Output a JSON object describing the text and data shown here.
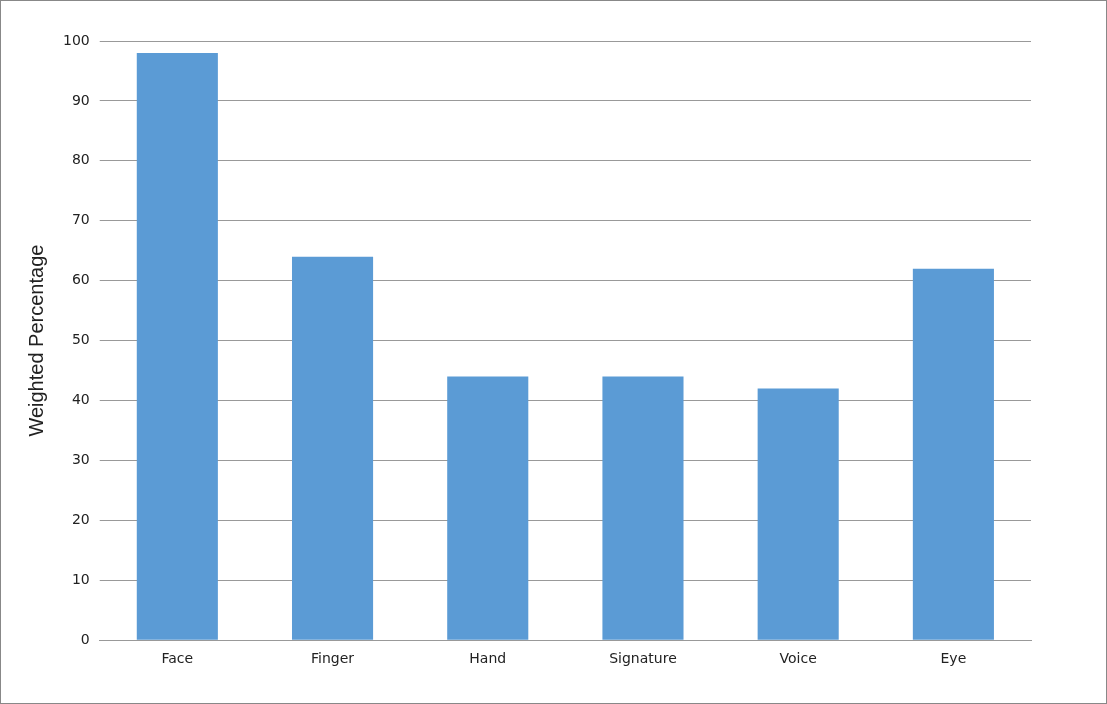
{
  "chart_data": {
    "type": "bar",
    "ylabel": "Weighted Percentage",
    "categories": [
      "Face",
      "Finger",
      "Hand",
      "Signature",
      "Voice",
      "Eye"
    ],
    "values": [
      98,
      64,
      44,
      44,
      42,
      62
    ],
    "color": "#5b9bd5",
    "ylim": [
      0,
      100
    ],
    "yticks": [
      0,
      10,
      20,
      30,
      40,
      50,
      60,
      70,
      80,
      90,
      100
    ],
    "grid": "y",
    "legend": false
  }
}
